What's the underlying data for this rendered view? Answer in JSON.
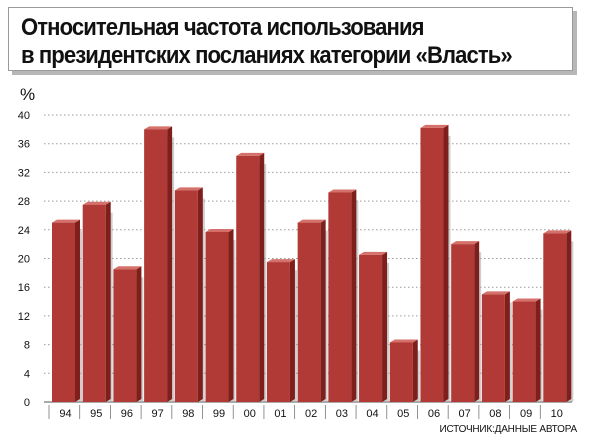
{
  "title": {
    "line1": "Относительная частота использования",
    "line2": "в президентских посланиях категории «Власть»"
  },
  "source": "ИСТОЧНИК:ДАННЫЕ АВТОРА",
  "colors": {
    "bar_front": "#b13a36",
    "bar_side": "#7e1f1c",
    "bar_top": "#d5706a",
    "shadow": "#a8a8a8"
  },
  "chart_data": {
    "type": "bar",
    "ylabel": "%",
    "ylim": [
      0,
      40
    ],
    "yticks": [
      0,
      4,
      8,
      12,
      16,
      20,
      24,
      28,
      32,
      36,
      40
    ],
    "grid": true,
    "categories": [
      "94",
      "95",
      "96",
      "97",
      "98",
      "99",
      "00",
      "01",
      "02",
      "03",
      "04",
      "05",
      "06",
      "07",
      "08",
      "09",
      "10"
    ],
    "values": [
      25,
      27.5,
      18.5,
      38,
      29.5,
      23.7,
      34.3,
      19.5,
      25,
      29.2,
      20.5,
      8.3,
      38.2,
      22,
      15,
      14,
      23.5
    ]
  }
}
